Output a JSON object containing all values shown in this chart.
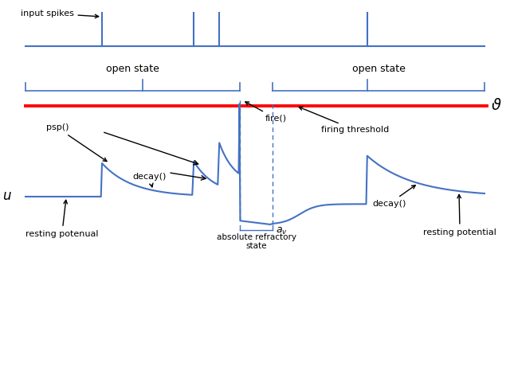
{
  "bg_color": "#ffffff",
  "blue_color": "#4472C4",
  "red_color": "#FF0000",
  "fig_width": 6.4,
  "fig_height": 4.66,
  "dpi": 100,
  "labels": {
    "input_spikes": "input spikes",
    "open_state": "open state",
    "firing_threshold": "firing threshold",
    "psp": "psp()",
    "fire": "fire()",
    "decay": "decay()",
    "u_label": "u",
    "resting_potenual": "resting potenual",
    "resting_potential": "resting potential",
    "absolute_refractory": "absolute refractory\nstate",
    "av_label": "$a_v$",
    "decay2": "decay()"
  }
}
